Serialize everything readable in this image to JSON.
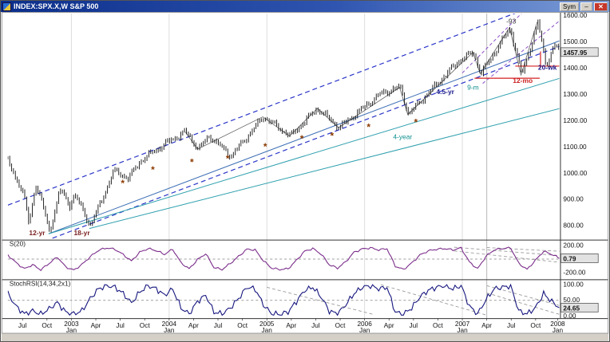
{
  "window": {
    "title": "INDEX:SPX.X,W S&P 500",
    "controls": {
      "sym_label": "Sym",
      "minimize_glyph": "–",
      "close_glyph": "✕"
    }
  },
  "chart_data": {
    "type": "candlestick",
    "title": "INDEX:SPX.X,W S&P 500",
    "symbol": "SPX.X",
    "interval": "W",
    "last_price": "1457.95",
    "y_axis_labels": [
      "1600.00",
      "1500.00",
      "1400.00",
      "1300.00",
      "1200.00",
      "1100.00",
      "1000.00",
      "900.00",
      "800.00"
    ],
    "y_axis_range": [
      800,
      1600
    ],
    "x_ticks": [
      {
        "t": 0,
        "m": "Jul"
      },
      {
        "t": 3,
        "m": "Oct"
      },
      {
        "t": 6,
        "m": "Jan",
        "yr": "2003"
      },
      {
        "t": 9,
        "m": "Apr"
      },
      {
        "t": 12,
        "m": "Jul"
      },
      {
        "t": 15,
        "m": "Oct"
      },
      {
        "t": 18,
        "m": "Jan",
        "yr": "2004"
      },
      {
        "t": 21,
        "m": "Apr"
      },
      {
        "t": 24,
        "m": "Jul"
      },
      {
        "t": 27,
        "m": "Oct"
      },
      {
        "t": 30,
        "m": "Jan",
        "yr": "2005"
      },
      {
        "t": 33,
        "m": "Apr"
      },
      {
        "t": 36,
        "m": "Jul"
      },
      {
        "t": 39,
        "m": "Oct"
      },
      {
        "t": 42,
        "m": "Jan",
        "yr": "2006"
      },
      {
        "t": 45,
        "m": "Apr"
      },
      {
        "t": 48,
        "m": "Jul"
      },
      {
        "t": 51,
        "m": "Oct"
      },
      {
        "t": 54,
        "m": "Jan",
        "yr": "2007"
      },
      {
        "t": 57,
        "m": "Apr"
      },
      {
        "t": 60,
        "m": "Jul"
      },
      {
        "t": 63,
        "m": "Oct"
      },
      {
        "t": 66,
        "m": "Jan",
        "yr": "2008"
      }
    ],
    "price_path_anchors": [
      [
        -1.8,
        1047
      ],
      [
        -1.2,
        1000
      ],
      [
        -0.4,
        960
      ],
      [
        0.3,
        900
      ],
      [
        0.8,
        798
      ],
      [
        1.6,
        960
      ],
      [
        2.4,
        890
      ],
      [
        3.3,
        772
      ],
      [
        4.6,
        938
      ],
      [
        5.8,
        875
      ],
      [
        6.4,
        920
      ],
      [
        8.3,
        800
      ],
      [
        9.6,
        885
      ],
      [
        11.2,
        1008
      ],
      [
        13.0,
        980
      ],
      [
        14.6,
        1048
      ],
      [
        17.6,
        1112
      ],
      [
        20.0,
        1157
      ],
      [
        21.6,
        1092
      ],
      [
        23.0,
        1140
      ],
      [
        25.6,
        1063
      ],
      [
        29.6,
        1213
      ],
      [
        32.9,
        1140
      ],
      [
        36.2,
        1245
      ],
      [
        38.9,
        1172
      ],
      [
        44.0,
        1302
      ],
      [
        46.4,
        1326
      ],
      [
        47.4,
        1223
      ],
      [
        53.6,
        1427
      ],
      [
        55.4,
        1459
      ],
      [
        56.3,
        1377
      ],
      [
        59.9,
        1552
      ],
      [
        61.3,
        1372
      ],
      [
        63.3,
        1572
      ],
      [
        64.3,
        1410
      ],
      [
        65.4,
        1488
      ],
      [
        66,
        1458
      ]
    ],
    "overlays": {
      "vertical_marker_t": 57,
      "trend_lines": [
        {
          "name": "upper-channel-dashed",
          "color": "#2a35c8",
          "dash": [
            6,
            4
          ],
          "width": 1.2,
          "from": [
            -1.8,
            877
          ],
          "to": [
            66,
            1672
          ]
        },
        {
          "name": "lower-channel-dashed",
          "color": "#2a35c8",
          "dash": [
            6,
            4
          ],
          "width": 1.2,
          "from": [
            -1.8,
            687
          ],
          "to": [
            66,
            1482
          ]
        },
        {
          "name": "support-blue-solid",
          "color": "#3d6fb5",
          "dash": null,
          "width": 1,
          "from": [
            3.2,
            768
          ],
          "to": [
            66,
            1503
          ]
        },
        {
          "name": "support-teal-solid",
          "color": "#2d9fae",
          "dash": null,
          "width": 1,
          "from": [
            3.2,
            768
          ],
          "to": [
            66,
            1360
          ]
        },
        {
          "name": "four-year-teal-solid",
          "color": "#2d9fae",
          "dash": null,
          "width": 1,
          "from": [
            8.2,
            788
          ],
          "to": [
            66,
            1245
          ]
        },
        {
          "name": "wedge-purple-dashed-1",
          "color": "#8a4fc8",
          "dash": [
            4,
            3
          ],
          "width": 1,
          "from": [
            54,
            1380
          ],
          "to": [
            62.5,
            1645
          ]
        },
        {
          "name": "wedge-purple-dashed-2",
          "color": "#8a4fc8",
          "dash": [
            4,
            3
          ],
          "width": 1,
          "from": [
            56.5,
            1340
          ],
          "to": [
            66,
            1580
          ]
        }
      ],
      "red_lines": [
        {
          "from": [
            55.5,
            1360
          ],
          "to": [
            63.5,
            1360
          ]
        },
        {
          "from": [
            60.5,
            1406
          ],
          "to": [
            66,
            1406
          ]
        },
        {
          "from": [
            63.6,
            1400
          ],
          "to": [
            63.6,
            1462
          ]
        }
      ],
      "zigzag": [
        [
          20,
          1155
        ],
        [
          21.5,
          1090
        ],
        [
          29.5,
          1213
        ],
        [
          32.8,
          1140
        ],
        [
          36.2,
          1245
        ],
        [
          38.8,
          1172
        ],
        [
          46.3,
          1325
        ],
        [
          47.3,
          1222
        ],
        [
          55.3,
          1458
        ],
        [
          56.2,
          1377
        ],
        [
          59.8,
          1553
        ],
        [
          61.2,
          1372
        ],
        [
          63.2,
          1574
        ]
      ],
      "asterisks": [
        [
          12.3,
          948
        ],
        [
          16,
          1000
        ],
        [
          20.8,
          1028
        ],
        [
          25.2,
          1042
        ],
        [
          29.8,
          1088
        ],
        [
          34.3,
          1118
        ],
        [
          38,
          1128
        ],
        [
          42.5,
          1162
        ],
        [
          48.3,
          1180
        ]
      ],
      "annotations": [
        {
          "text": "12-yr",
          "t": 0.8,
          "p": 762,
          "color": "#7a1f1f",
          "bold": true
        },
        {
          "text": "18-yr",
          "t": 6.3,
          "p": 762,
          "color": "#7a1f1f",
          "bold": true
        },
        {
          "text": "4-year",
          "t": 45.5,
          "p": 1128,
          "color": "#0f8f8f",
          "bold": false
        },
        {
          "text": "4.5-yr",
          "t": 50.8,
          "p": 1300,
          "color": "#1b1b8c",
          "bold": true
        },
        {
          "text": "9-m",
          "t": 54.6,
          "p": 1316,
          "color": "#0f8f8f",
          "bold": false
        },
        {
          "text": "12-mo",
          "t": 60.2,
          "p": 1342,
          "color": "#cc2020",
          "bold": true
        },
        {
          "text": "20-wk",
          "t": 63.3,
          "p": 1392,
          "color": "#1b1b8c",
          "bold": true
        },
        {
          "text": "-93",
          "t": 59.4,
          "p": 1568,
          "color": "#333333",
          "bold": false
        }
      ]
    },
    "panels": [
      {
        "label": "S(20)",
        "line_color": "#7b2d8b",
        "axis_labels": [
          "200.00",
          "-200.00"
        ],
        "midline": 0,
        "range": [
          -200,
          200
        ],
        "last_label": "0.79",
        "last_value": 0.79,
        "aux_lines": [
          [
            53,
            170,
            66,
            45
          ],
          [
            53,
            115,
            66,
            -55
          ],
          [
            57,
            165,
            66,
            110
          ]
        ],
        "values": [
          55,
          -60,
          -150,
          -90,
          -165,
          -70,
          25,
          -120,
          -170,
          -85,
          30,
          125,
          160,
          140,
          60,
          -35,
          95,
          150,
          120,
          65,
          140,
          -60,
          -150,
          -15,
          75,
          -130,
          -160,
          -70,
          35,
          140,
          130,
          -30,
          -140,
          -160,
          -150,
          -25,
          110,
          150,
          70,
          -90,
          -140,
          -45,
          95,
          145,
          160,
          130,
          150,
          -110,
          -160,
          -65,
          55,
          115,
          140,
          150,
          130,
          160,
          -50,
          -150,
          35,
          130,
          150,
          160,
          -70,
          -160,
          -25,
          110,
          65,
          0.79
        ]
      },
      {
        "label": "StochRSI(14,34,2x1)",
        "line_color": "#15157e",
        "axis_labels": [
          "100.00",
          "50.00",
          "0.00"
        ],
        "midline": 50,
        "range": [
          0,
          100
        ],
        "last_label": "24.65",
        "last_value": 24.65,
        "aux_lines": [
          [
            30,
            90,
            43,
            5
          ],
          [
            44,
            98,
            57,
            2
          ],
          [
            57,
            95,
            66,
            32
          ],
          [
            57,
            72,
            66,
            4
          ]
        ],
        "values": [
          70,
          30,
          6,
          16,
          5,
          22,
          42,
          12,
          6,
          16,
          55,
          85,
          95,
          90,
          70,
          40,
          75,
          95,
          85,
          65,
          85,
          25,
          6,
          45,
          65,
          12,
          6,
          25,
          55,
          90,
          85,
          35,
          6,
          5,
          12,
          45,
          80,
          90,
          60,
          15,
          6,
          35,
          70,
          90,
          95,
          85,
          90,
          12,
          5,
          25,
          60,
          80,
          90,
          95,
          85,
          95,
          30,
          6,
          50,
          85,
          90,
          95,
          15,
          6,
          25,
          70,
          45,
          24.65
        ]
      }
    ]
  }
}
